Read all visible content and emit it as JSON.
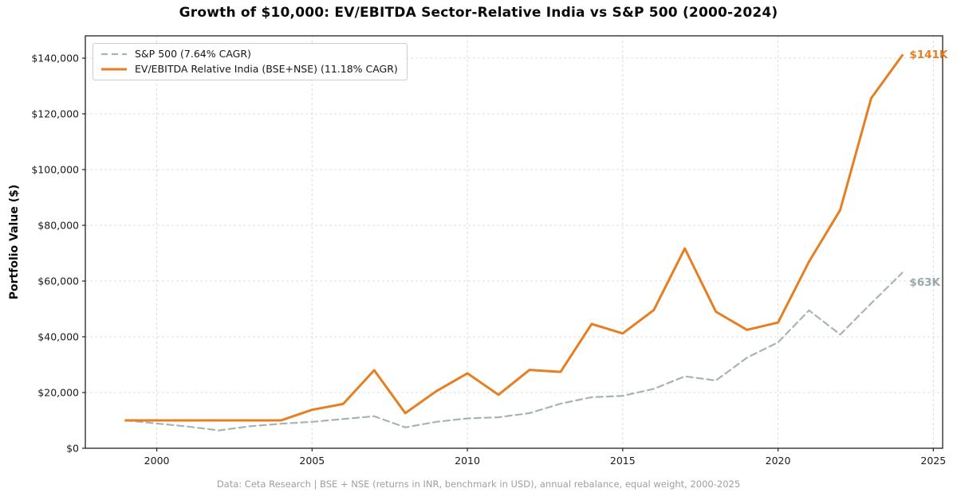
{
  "figure": {
    "title": "Growth of $10,000: EV/EBITDA Sector-Relative India vs S&P 500 (2000-2024)",
    "ylabel": "Portfolio Value ($)",
    "footer": "Data: Ceta Research | BSE + NSE (returns in INR, benchmark in USD), annual rebalance, equal weight, 2000-2025"
  },
  "legend": {
    "position": "upper-left",
    "items": [
      {
        "label": "S&P 500 (7.64% CAGR)"
      },
      {
        "label": "EV/EBITDA Relative India (BSE+NSE) (11.18% CAGR)"
      }
    ]
  },
  "colors": {
    "accent_orange": "#e67e22",
    "benchmark_gray": "#a9b3b3",
    "grid": "#dcdcdc",
    "spine": "#222222",
    "gray_label": "#9aa8ae"
  },
  "chart_data": {
    "type": "line",
    "title": "Growth of $10,000: EV/EBITDA Sector-Relative India vs S&P 500 (2000-2024)",
    "xlabel": "",
    "ylabel": "Portfolio Value ($)",
    "x": [
      1999,
      2000,
      2001,
      2002,
      2003,
      2004,
      2005,
      2006,
      2007,
      2008,
      2009,
      2010,
      2011,
      2012,
      2013,
      2014,
      2015,
      2016,
      2017,
      2018,
      2019,
      2020,
      2021,
      2022,
      2023,
      2024
    ],
    "series": [
      {
        "id": "sp500",
        "name": "S&P 500 (7.64% CAGR)",
        "color": "#a9b3b3",
        "dash": "8,5",
        "width": 2.2,
        "values": [
          10000,
          8900,
          7800,
          6400,
          7900,
          8800,
          9500,
          10500,
          11500,
          7500,
          9500,
          10700,
          11100,
          12600,
          16000,
          18300,
          18800,
          21300,
          25800,
          24300,
          32500,
          38000,
          49500,
          40800,
          52000,
          63000
        ],
        "end_label": "$63K",
        "end_label_color": "#9aa8ae"
      },
      {
        "id": "india-ev-ebitda",
        "name": "EV/EBITDA Relative India (BSE+NSE) (11.18% CAGR)",
        "color": "#e67e22",
        "dash": "",
        "width": 3,
        "values": [
          10000,
          10000,
          10000,
          10000,
          10000,
          10000,
          13800,
          15900,
          28000,
          12600,
          20500,
          26900,
          19200,
          28100,
          27400,
          44600,
          41200,
          49600,
          71700,
          49000,
          42500,
          45100,
          67000,
          85500,
          125600,
          141000
        ],
        "end_label": "$141K",
        "end_label_color": "#e67e22"
      }
    ],
    "xticks": {
      "values": [
        2000,
        2005,
        2010,
        2015,
        2020,
        2025
      ],
      "labels": [
        "2000",
        "2005",
        "2010",
        "2015",
        "2020",
        "2025"
      ]
    },
    "yticks": {
      "values": [
        0,
        20000,
        40000,
        60000,
        80000,
        100000,
        120000,
        140000
      ],
      "labels": [
        "$0",
        "$20,000",
        "$40,000",
        "$60,000",
        "$80,000",
        "$100,000",
        "$120,000",
        "$140,000"
      ]
    },
    "xlim": [
      1997.7,
      2025.3
    ],
    "ylim": [
      0,
      148000
    ],
    "grid": true,
    "legend_position": "upper-left"
  }
}
